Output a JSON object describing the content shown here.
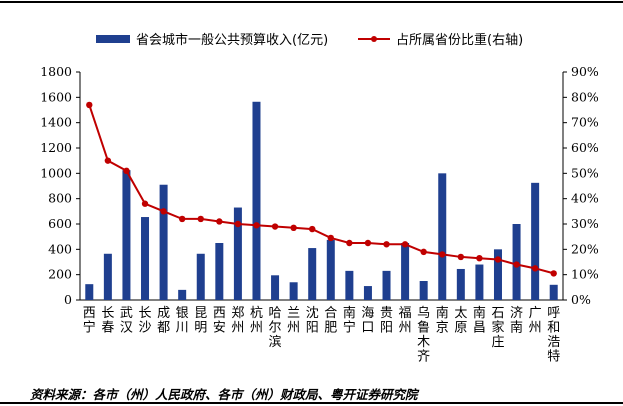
{
  "chart_data": {
    "type": "bar+line",
    "legend_position": "top",
    "categories": [
      "西宁",
      "长春",
      "武汉",
      "长沙",
      "成都",
      "银川",
      "昆明",
      "西安",
      "郑州",
      "杭州",
      "哈尔滨",
      "兰州",
      "沈阳",
      "合肥",
      "南宁",
      "海口",
      "贵阳",
      "福州",
      "乌鲁木齐",
      "南京",
      "太原",
      "南昌",
      "石家庄",
      "济南",
      "广州",
      "呼和浩特"
    ],
    "series": [
      {
        "name": "省会城市一般公共预算收入(亿元)",
        "type": "bar",
        "axis": "left",
        "color": "#1F3F8F",
        "values": [
          125,
          365,
          1025,
          655,
          910,
          80,
          365,
          450,
          730,
          1565,
          195,
          140,
          410,
          475,
          230,
          110,
          230,
          450,
          150,
          1000,
          245,
          280,
          400,
          600,
          925,
          120
        ]
      },
      {
        "name": "占所属省份比重(右轴)",
        "type": "line",
        "axis": "right",
        "color": "#C00000",
        "values": [
          77,
          55,
          51,
          38,
          35,
          32,
          32,
          31,
          30,
          29.5,
          29,
          28.5,
          28,
          24.5,
          22.5,
          22.5,
          22,
          22,
          19,
          18,
          17,
          16.5,
          16,
          14,
          12.5,
          10.5
        ]
      }
    ],
    "y_left": {
      "min": 0,
      "max": 1800,
      "step": 200,
      "ticks": [
        "0",
        "200",
        "400",
        "600",
        "800",
        "1000",
        "1200",
        "1400",
        "1600",
        "1800"
      ]
    },
    "y_right": {
      "min": 0,
      "max": 90,
      "step": 10,
      "ticks": [
        "0%",
        "10%",
        "20%",
        "30%",
        "40%",
        "50%",
        "60%",
        "70%",
        "80%",
        "90%"
      ]
    },
    "grid": false
  },
  "source_text": "资料来源：各市（州）人民政府、各市（州）财政局、粤开证券研究院"
}
